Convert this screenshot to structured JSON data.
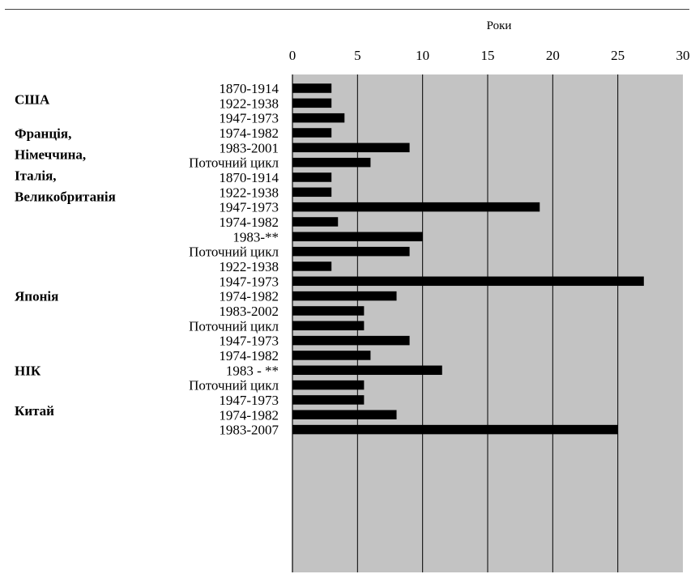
{
  "chart_data": {
    "type": "bar",
    "orientation": "horizontal",
    "xlabel": "Роки",
    "xlim": [
      0,
      30
    ],
    "xticks": [
      0,
      5,
      10,
      15,
      20,
      25,
      30
    ],
    "grid": true,
    "axis_position": "top",
    "groups": [
      {
        "name": "США",
        "name_lines": [
          "США"
        ],
        "slots": 6,
        "label_at": 0.75,
        "bars": [
          {
            "label": "1870-1914",
            "value": 3
          },
          {
            "label": "1922-1938",
            "value": 3
          },
          {
            "label": "1947-1973",
            "value": 4
          },
          {
            "label": "1974-1982",
            "value": 3
          },
          {
            "label": "1983-2001",
            "value": 9
          },
          {
            "label": "Поточний цикл",
            "value": 6
          }
        ]
      },
      {
        "name": "Франція, Німеччина, Італія, Великобританія",
        "name_lines": [
          "Франція,",
          "Німеччина,",
          "Італія,",
          "Великобританія"
        ],
        "slots": 6,
        "label_at": -0.85,
        "bars": [
          {
            "label": "1870-1914",
            "value": 3
          },
          {
            "label": "1922-1938",
            "value": 3
          },
          {
            "label": "1947-1973",
            "value": 19
          },
          {
            "label": "1974-1982",
            "value": 3.5
          },
          {
            "label": "1983-**",
            "value": 10
          },
          {
            "label": "Поточний цикл",
            "value": 9
          }
        ]
      },
      {
        "name": "Японія",
        "name_lines": [
          "Японія"
        ],
        "slots": 5,
        "label_at": 2,
        "bars": [
          {
            "label": "1922-1938",
            "value": 3
          },
          {
            "label": "1947-1973",
            "value": 27
          },
          {
            "label": "1974-1982",
            "value": 8
          },
          {
            "label": "1983-2002",
            "value": 5.5
          },
          {
            "label": "Поточний цикл",
            "value": 5.5
          }
        ]
      },
      {
        "name": "НІК",
        "name_lines": [
          "НІК"
        ],
        "slots": 4,
        "label_at": 2,
        "bars": [
          {
            "label": "1947-1973",
            "value": 9
          },
          {
            "label": "1974-1982",
            "value": 6
          },
          {
            "label": "1983 - **",
            "value": 11.5
          },
          {
            "label": "Поточний цикл",
            "value": 5.5
          }
        ]
      },
      {
        "name": "Китай",
        "name_lines": [
          "Китай"
        ],
        "slots": 3,
        "label_at": 0.7,
        "bars": [
          {
            "label": "1947-1973",
            "value": 5.5
          },
          {
            "label": "1974-1982",
            "value": 8
          },
          {
            "label": "1983-2007",
            "value": 25
          }
        ]
      }
    ]
  }
}
